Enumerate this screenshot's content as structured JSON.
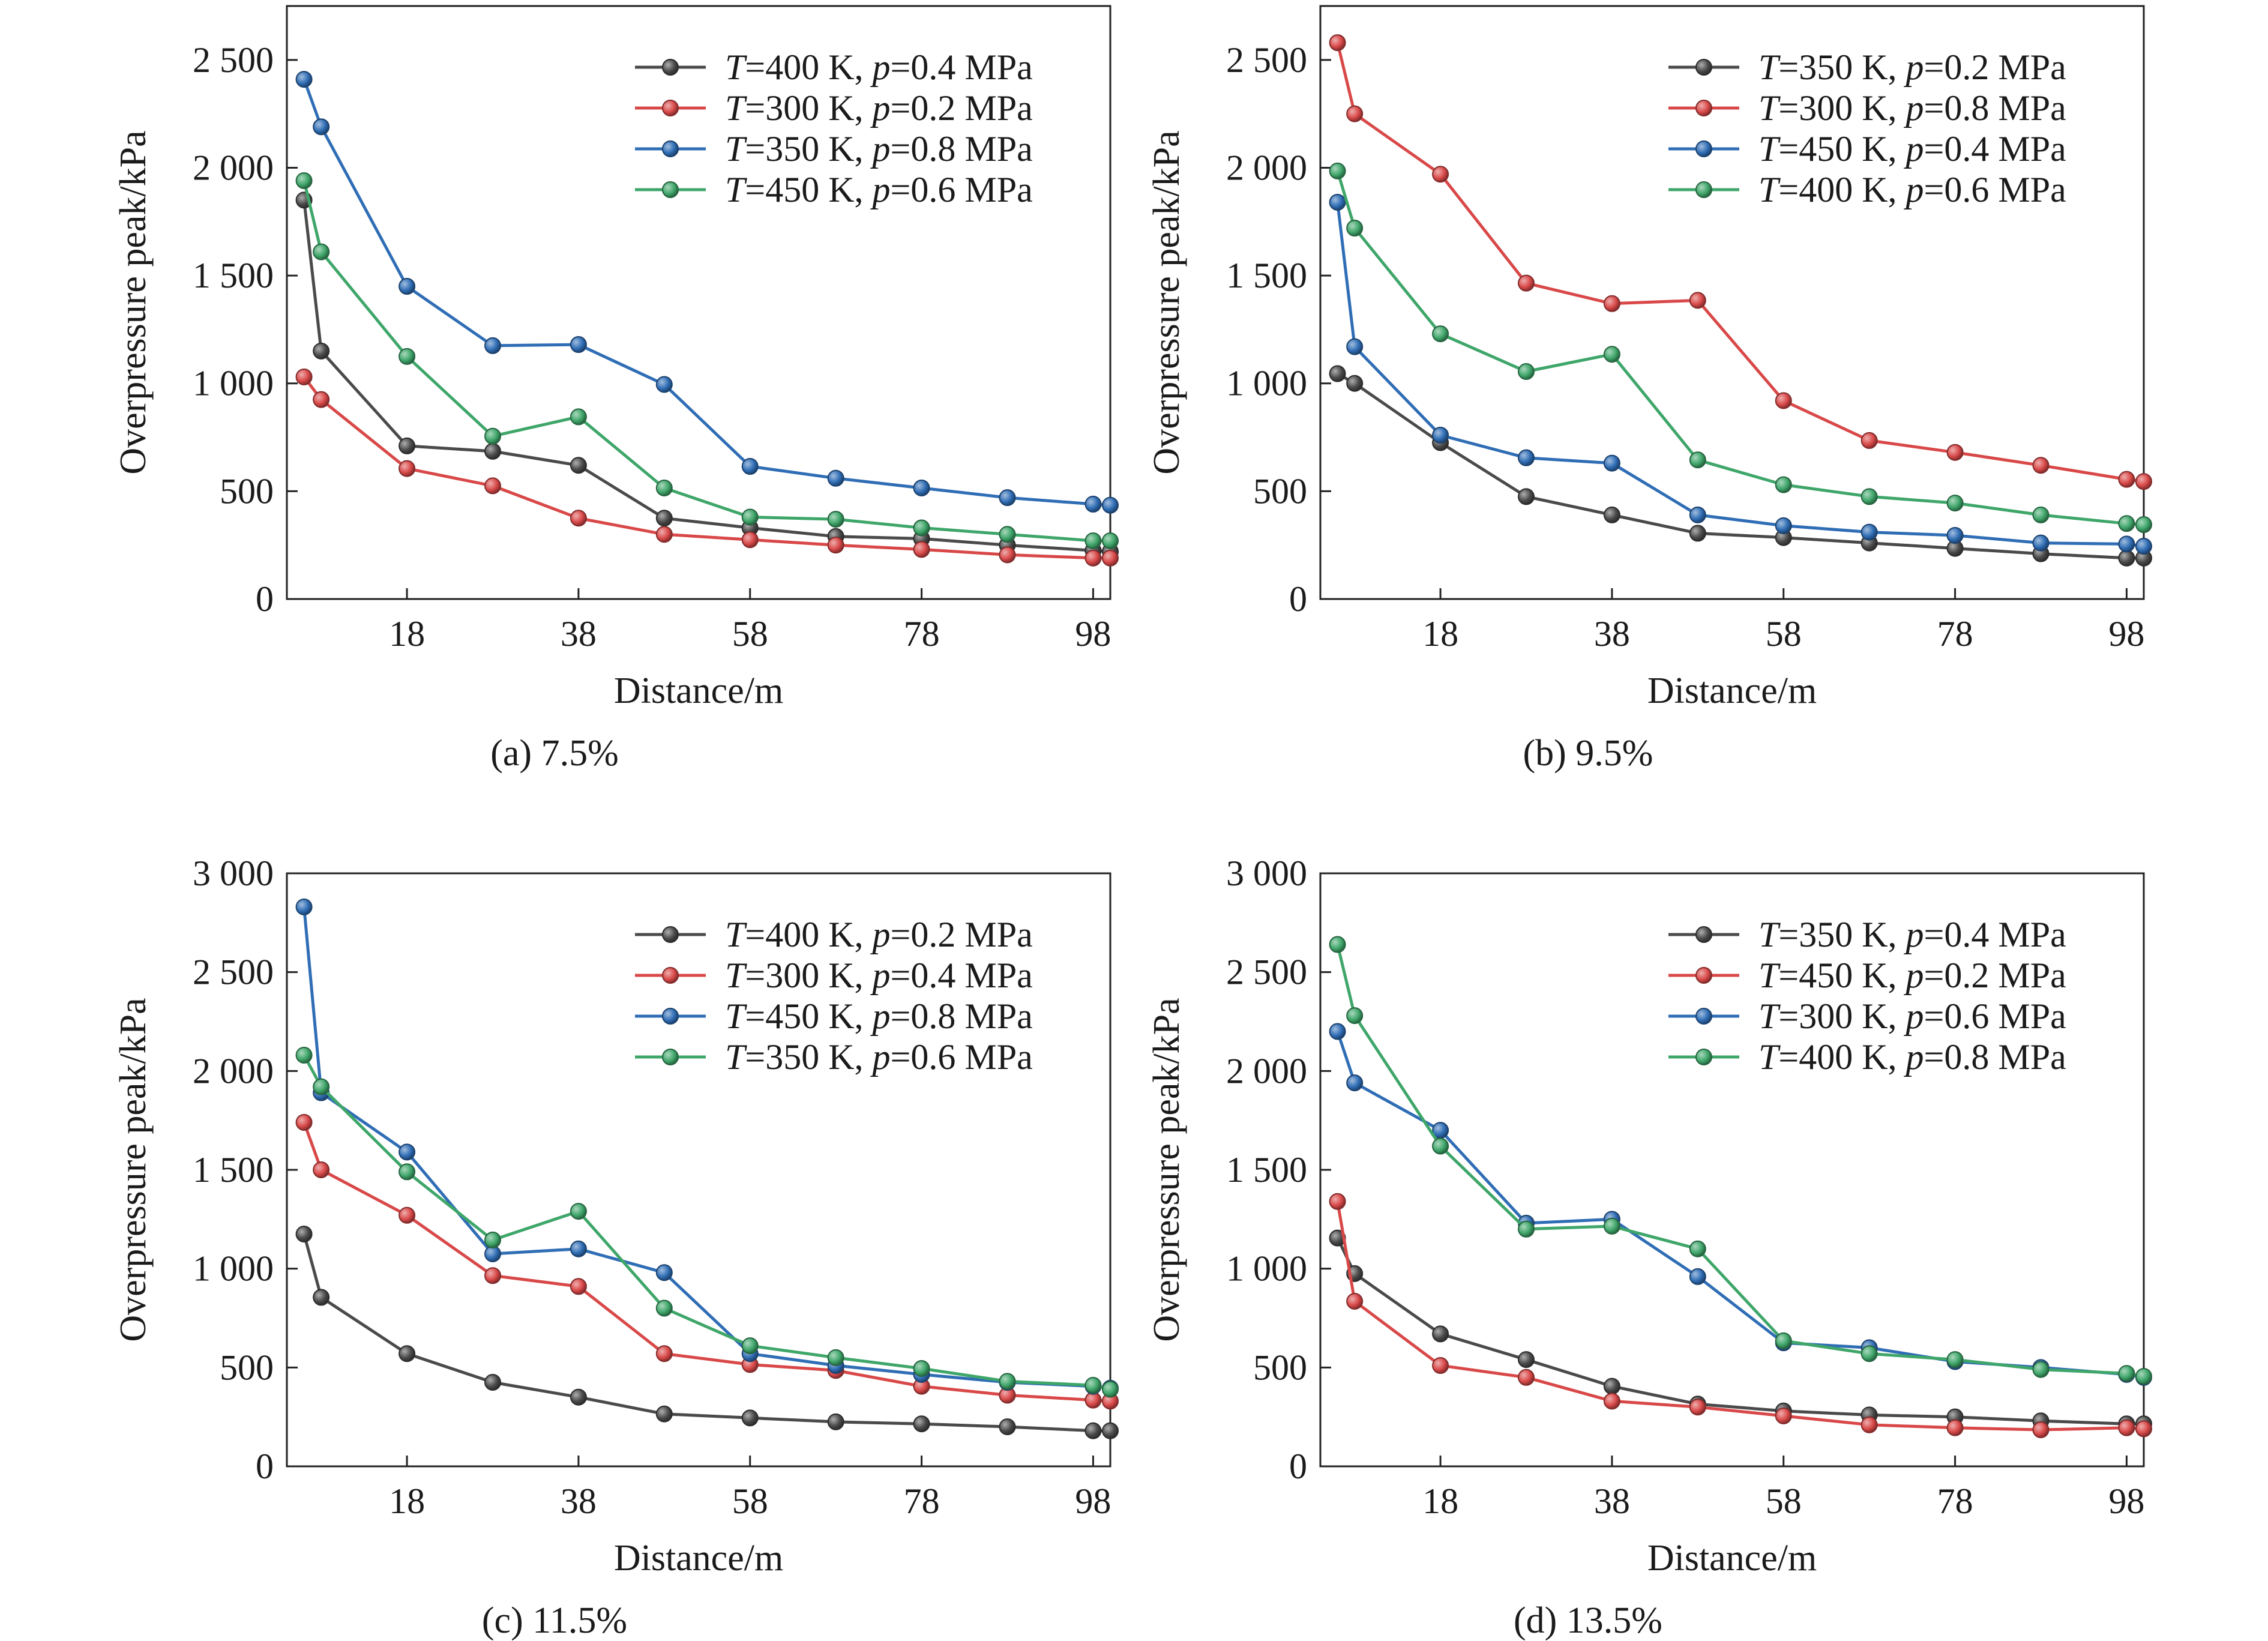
{
  "chart_data": [
    {
      "type": "line",
      "caption": "(a) 7.5%",
      "xlabel": "Distance/m",
      "ylabel": "Overpressure peak/kPa",
      "xlim": [
        4,
        100
      ],
      "ylim": [
        0,
        2750
      ],
      "x_ticks": [
        18,
        38,
        58,
        78,
        98
      ],
      "y_ticks": [
        0,
        500,
        1000,
        1500,
        2000,
        2500
      ],
      "y_tick_labels": [
        "0",
        "500",
        "1 000",
        "1 500",
        "2 000",
        "2 500"
      ],
      "legend": "top-right",
      "x": [
        6,
        8,
        18,
        28,
        38,
        48,
        58,
        68,
        78,
        88,
        98,
        100
      ],
      "series": [
        {
          "name": "T=400 K, p=0.4 MPa",
          "T": "400",
          "p": "0.4",
          "color": "#4a4a4a",
          "values": [
            1850,
            1150,
            710,
            685,
            620,
            375,
            330,
            290,
            280,
            250,
            225,
            220
          ]
        },
        {
          "name": "T=300 K, p=0.2 MPa",
          "T": "300",
          "p": "0.2",
          "color": "#d94848",
          "values": [
            1030,
            925,
            605,
            525,
            375,
            300,
            275,
            250,
            230,
            205,
            190,
            190
          ]
        },
        {
          "name": "T=350 K, p=0.8 MPa",
          "T": "350",
          "p": "0.8",
          "color": "#2f6db5",
          "values": [
            2410,
            2190,
            1450,
            1175,
            1180,
            995,
            615,
            560,
            515,
            470,
            440,
            435
          ]
        },
        {
          "name": "T=450 K, p=0.6 MPa",
          "T": "450",
          "p": "0.6",
          "color": "#3fa66a",
          "values": [
            1940,
            1610,
            1125,
            755,
            845,
            515,
            380,
            370,
            330,
            300,
            270,
            270
          ]
        }
      ]
    },
    {
      "type": "line",
      "caption": "(b) 9.5%",
      "xlabel": "Distance/m",
      "ylabel": "Overpressure peak/kPa",
      "xlim": [
        4,
        100
      ],
      "ylim": [
        0,
        2750
      ],
      "x_ticks": [
        18,
        38,
        58,
        78,
        98
      ],
      "y_ticks": [
        0,
        500,
        1000,
        1500,
        2000,
        2500
      ],
      "y_tick_labels": [
        "0",
        "500",
        "1 000",
        "1 500",
        "2 000",
        "2 500"
      ],
      "legend": "top-right",
      "x": [
        6,
        8,
        18,
        28,
        38,
        48,
        58,
        68,
        78,
        88,
        98,
        100
      ],
      "series": [
        {
          "name": "T=350 K, p=0.2 MPa",
          "T": "350",
          "p": "0.2",
          "color": "#4a4a4a",
          "values": [
            1045,
            1000,
            725,
            475,
            390,
            305,
            285,
            260,
            235,
            210,
            190,
            190
          ]
        },
        {
          "name": "T=300 K, p=0.8 MPa",
          "T": "300",
          "p": "0.8",
          "color": "#d94848",
          "values": [
            2580,
            2250,
            1970,
            1465,
            1370,
            1385,
            920,
            735,
            680,
            620,
            555,
            545
          ]
        },
        {
          "name": "T=450 K, p=0.4 MPa",
          "T": "450",
          "p": "0.4",
          "color": "#2f6db5",
          "values": [
            1840,
            1170,
            760,
            655,
            630,
            390,
            340,
            310,
            295,
            260,
            255,
            245
          ]
        },
        {
          "name": "T=400 K, p=0.6 MPa",
          "T": "400",
          "p": "0.6",
          "color": "#3fa66a",
          "values": [
            1985,
            1720,
            1230,
            1055,
            1135,
            645,
            530,
            475,
            445,
            390,
            350,
            345
          ]
        }
      ]
    },
    {
      "type": "line",
      "caption": "(c) 11.5%",
      "xlabel": "Distance/m",
      "ylabel": "Overpressure peak/kPa",
      "xlim": [
        4,
        100
      ],
      "ylim": [
        0,
        3000
      ],
      "x_ticks": [
        18,
        38,
        58,
        78,
        98
      ],
      "y_ticks": [
        0,
        500,
        1000,
        1500,
        2000,
        2500,
        3000
      ],
      "y_tick_labels": [
        "0",
        "500",
        "1 000",
        "1 500",
        "2 000",
        "2 500",
        "3 000"
      ],
      "legend": "top-right",
      "x": [
        6,
        8,
        18,
        28,
        38,
        48,
        58,
        68,
        78,
        88,
        98,
        100
      ],
      "series": [
        {
          "name": "T=400 K, p=0.2 MPa",
          "T": "400",
          "p": "0.2",
          "color": "#4a4a4a",
          "values": [
            1175,
            855,
            570,
            425,
            350,
            265,
            245,
            225,
            215,
            200,
            180,
            180
          ]
        },
        {
          "name": "T=300 K, p=0.4 MPa",
          "T": "300",
          "p": "0.4",
          "color": "#d94848",
          "values": [
            1740,
            1500,
            1270,
            965,
            910,
            570,
            515,
            485,
            405,
            360,
            335,
            330
          ]
        },
        {
          "name": "T=450 K, p=0.8 MPa",
          "T": "450",
          "p": "0.8",
          "color": "#2f6db5",
          "values": [
            2830,
            1890,
            1590,
            1075,
            1100,
            980,
            570,
            510,
            465,
            425,
            405,
            395
          ]
        },
        {
          "name": "T=350 K, p=0.6 MPa",
          "T": "350",
          "p": "0.6",
          "color": "#3fa66a",
          "values": [
            2080,
            1920,
            1490,
            1145,
            1290,
            800,
            610,
            550,
            495,
            430,
            410,
            390
          ]
        }
      ]
    },
    {
      "type": "line",
      "caption": "(d) 13.5%",
      "xlabel": "Distance/m",
      "ylabel": "Overpressure peak/kPa",
      "xlim": [
        4,
        100
      ],
      "ylim": [
        0,
        3000
      ],
      "x_ticks": [
        18,
        38,
        58,
        78,
        98
      ],
      "y_ticks": [
        0,
        500,
        1000,
        1500,
        2000,
        2500,
        3000
      ],
      "y_tick_labels": [
        "0",
        "500",
        "1 000",
        "1 500",
        "2 000",
        "2 500",
        "3 000"
      ],
      "legend": "top-right",
      "x": [
        6,
        8,
        18,
        28,
        38,
        48,
        58,
        68,
        78,
        88,
        98,
        100
      ],
      "series": [
        {
          "name": "T=350 K, p=0.4 MPa",
          "T": "350",
          "p": "0.4",
          "color": "#4a4a4a",
          "values": [
            1155,
            975,
            670,
            540,
            405,
            315,
            280,
            260,
            250,
            230,
            215,
            215
          ]
        },
        {
          "name": "T=450 K, p=0.2 MPa",
          "T": "450",
          "p": "0.2",
          "color": "#d94848",
          "values": [
            1340,
            835,
            510,
            450,
            330,
            300,
            255,
            210,
            195,
            185,
            195,
            190
          ]
        },
        {
          "name": "T=300 K, p=0.6 MPa",
          "T": "300",
          "p": "0.6",
          "color": "#2f6db5",
          "values": [
            2200,
            1940,
            1700,
            1230,
            1250,
            960,
            625,
            600,
            530,
            500,
            465,
            450
          ]
        },
        {
          "name": "T=400 K, p=0.8 MPa",
          "T": "400",
          "p": "0.8",
          "color": "#3fa66a",
          "values": [
            2640,
            2280,
            1620,
            1200,
            1215,
            1100,
            635,
            570,
            540,
            490,
            470,
            455
          ]
        }
      ]
    }
  ]
}
